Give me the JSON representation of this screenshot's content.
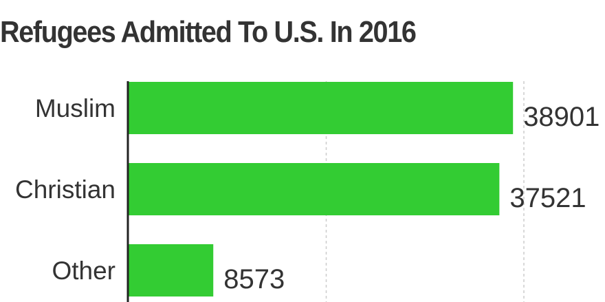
{
  "chart_data": {
    "type": "bar",
    "orientation": "horizontal",
    "title": "Refugees Admitted To U.S. In 2016",
    "xlabel": "",
    "ylabel": "",
    "categories": [
      "Muslim",
      "Christian",
      "Other"
    ],
    "values": [
      38901,
      37521,
      8573
    ],
    "xlim": [
      0,
      40000
    ],
    "gridlines_x": [
      20000,
      40000
    ],
    "grid": true,
    "legend": "none",
    "bar_color": "#33cc33",
    "data_labels": [
      "38901",
      "37521",
      "8573"
    ]
  }
}
